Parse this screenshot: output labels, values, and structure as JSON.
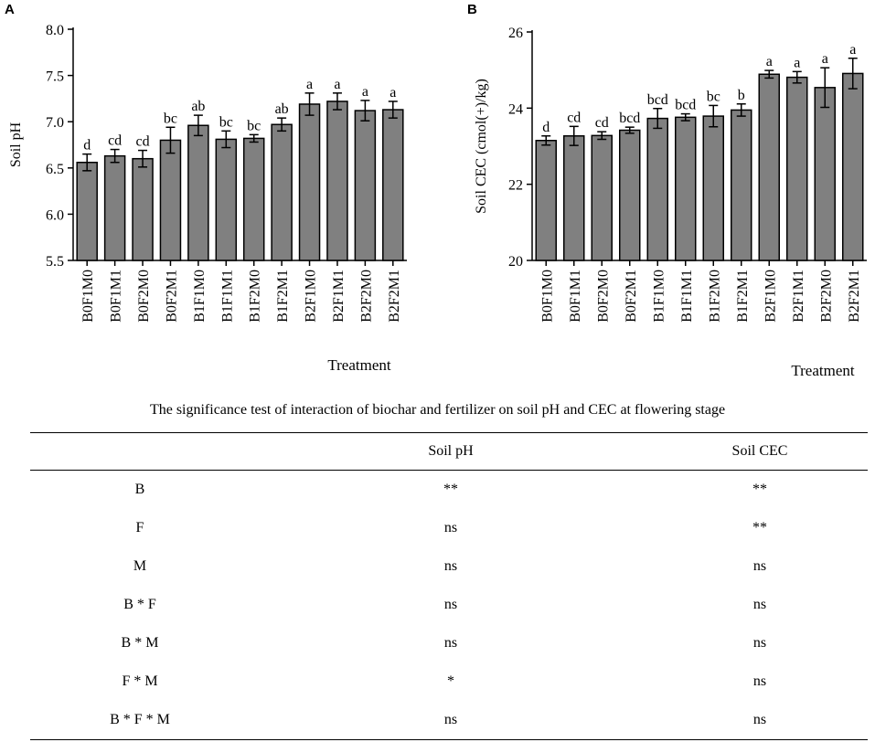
{
  "panels": {
    "a": "A",
    "b": "B"
  },
  "chart_data": [
    {
      "type": "bar",
      "panel": "A",
      "title": "",
      "xlabel": "Treatment",
      "ylabel": "Soil pH",
      "ylim": [
        5.5,
        8.0
      ],
      "yticks": [
        "5.5",
        "6.0",
        "6.5",
        "7.0",
        "7.5",
        "8.0"
      ],
      "categories": [
        "B0F1M0",
        "B0F1M1",
        "B0F2M0",
        "B0F2M1",
        "B1F1M0",
        "B1F1M1",
        "B1F2M0",
        "B1F2M1",
        "B2F1M0",
        "B2F1M1",
        "B2F2M0",
        "B2F2M1"
      ],
      "values": [
        6.56,
        6.63,
        6.6,
        6.8,
        6.96,
        6.81,
        6.82,
        6.97,
        7.19,
        7.22,
        7.12,
        7.13
      ],
      "errors": [
        0.09,
        0.07,
        0.09,
        0.14,
        0.11,
        0.09,
        0.04,
        0.07,
        0.12,
        0.09,
        0.11,
        0.09
      ],
      "labels": [
        "d",
        "cd",
        "cd",
        "bc",
        "ab",
        "bc",
        "bc",
        "ab",
        "a",
        "a",
        "a",
        "a"
      ],
      "bar_color": "#808080"
    },
    {
      "type": "bar",
      "panel": "B",
      "title": "",
      "xlabel": "Treatment",
      "ylabel": "Soil CEC (cmol(+)/kg)",
      "ylim": [
        20,
        26
      ],
      "yticks": [
        "20",
        "22",
        "24",
        "26"
      ],
      "categories": [
        "B0F1M0",
        "B0F1M1",
        "B0F2M0",
        "B0F2M1",
        "B1F1M0",
        "B1F1M1",
        "B1F2M0",
        "B1F2M1",
        "B2F1M0",
        "B2F1M1",
        "B2F2M0",
        "B2F2M1"
      ],
      "values": [
        23.15,
        23.27,
        23.28,
        23.42,
        23.73,
        23.76,
        23.79,
        23.95,
        24.89,
        24.81,
        24.54,
        24.91
      ],
      "errors": [
        0.12,
        0.25,
        0.1,
        0.08,
        0.26,
        0.09,
        0.28,
        0.16,
        0.1,
        0.15,
        0.52,
        0.4
      ],
      "labels": [
        "d",
        "cd",
        "cd",
        "bcd",
        "bcd",
        "bcd",
        "bc",
        "b",
        "a",
        "a",
        "a",
        "a"
      ],
      "bar_color": "#808080"
    }
  ],
  "table": {
    "caption": "The significance test of interaction of biochar and fertilizer on soil pH and CEC at flowering stage",
    "headers": [
      "",
      "Soil pH",
      "Soil CEC"
    ],
    "rows": [
      [
        "B",
        "**",
        "**"
      ],
      [
        "F",
        "ns",
        "**"
      ],
      [
        "M",
        "ns",
        "ns"
      ],
      [
        "B * F",
        "ns",
        "ns"
      ],
      [
        "B * M",
        "ns",
        "ns"
      ],
      [
        "F * M",
        "*",
        "ns"
      ],
      [
        "B * F * M",
        "ns",
        "ns"
      ]
    ]
  }
}
